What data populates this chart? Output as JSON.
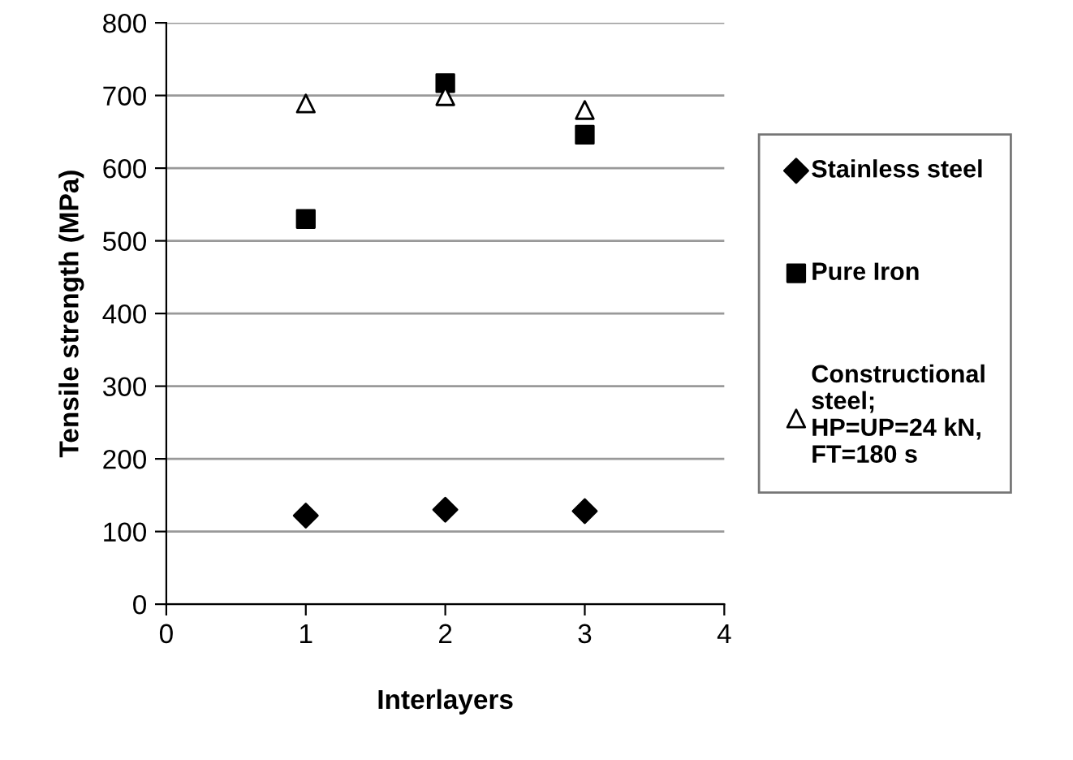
{
  "chart_data": {
    "type": "scatter",
    "xlabel": "Interlayers",
    "ylabel": "Tensile strength (MPa)",
    "x": [
      1,
      2,
      3
    ],
    "series": [
      {
        "name": "Stainless steel",
        "color": "#000000",
        "marker": "diamond",
        "values": [
          122,
          130,
          128
        ]
      },
      {
        "name": "Pure Iron",
        "color": "#000000",
        "marker": "square",
        "values": [
          530,
          717,
          646
        ]
      },
      {
        "name": "Constructional\nsteel;\nHP=UP=24 kN,\nFT=180 s",
        "color": "#000000",
        "marker": "triangle",
        "values": [
          689,
          699,
          680
        ]
      }
    ],
    "xlim": [
      0,
      4
    ],
    "xticks": [
      0,
      1,
      2,
      3,
      4
    ],
    "ylim": [
      0,
      800
    ],
    "yticks": [
      0,
      100,
      200,
      300,
      400,
      500,
      600,
      700,
      800
    ],
    "grid": "y",
    "legend": "right"
  }
}
